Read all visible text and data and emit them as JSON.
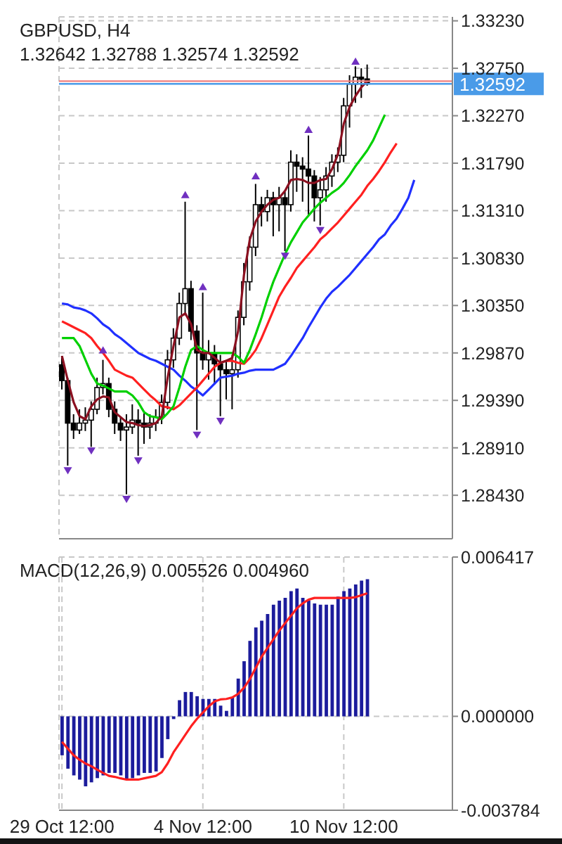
{
  "chart_data": [
    {
      "type": "candlestick",
      "title": "GBPUSD, H4",
      "subtitle": "1.32642 1.32788 1.32574 1.32592",
      "color": "#000000",
      "categories": [
        null,
        null,
        null,
        null,
        null,
        null,
        null,
        null,
        null,
        null,
        null,
        null,
        null,
        null,
        null,
        null,
        null,
        null,
        null,
        null,
        null,
        null,
        null,
        null,
        null,
        null,
        null,
        null,
        null,
        null,
        null,
        null,
        null,
        null,
        null,
        null,
        null,
        null,
        null,
        null,
        null,
        null,
        null,
        null,
        null,
        null,
        null,
        null,
        null,
        null,
        null,
        null,
        null,
        null,
        null,
        null,
        null,
        null,
        null,
        null,
        null,
        null,
        null,
        null,
        null,
        null,
        null
      ],
      "ohlc": [
        [
          1.2975,
          1.2984,
          1.295,
          1.2959
        ],
        [
          1.2959,
          1.2962,
          1.2873,
          1.2916
        ],
        [
          1.2916,
          1.2925,
          1.29,
          1.2909
        ],
        [
          1.2909,
          1.293,
          1.2905,
          1.2916
        ],
        [
          1.2916,
          1.2932,
          1.2908,
          1.2919
        ],
        [
          1.2919,
          1.2938,
          1.2892,
          1.293
        ],
        [
          1.293,
          1.2962,
          1.2925,
          1.2952
        ],
        [
          1.2952,
          1.298,
          1.2945,
          1.2956
        ],
        [
          1.2956,
          1.2962,
          1.2922,
          1.293
        ],
        [
          1.293,
          1.2938,
          1.2905,
          1.2916
        ],
        [
          1.2916,
          1.2922,
          1.2898,
          1.2909
        ],
        [
          1.2909,
          1.2925,
          1.2844,
          1.2912
        ],
        [
          1.2912,
          1.2935,
          1.2905,
          1.2919
        ],
        [
          1.2919,
          1.293,
          1.2883,
          1.2916
        ],
        [
          1.2916,
          1.2926,
          1.2895,
          1.2912
        ],
        [
          1.2912,
          1.2925,
          1.29,
          1.2916
        ],
        [
          1.2916,
          1.293,
          1.2908,
          1.2922
        ],
        [
          1.2922,
          1.2945,
          1.2915,
          1.2937
        ],
        [
          1.2937,
          1.299,
          1.293,
          1.298
        ],
        [
          1.298,
          1.3012,
          1.2972,
          1.3002
        ],
        [
          1.3002,
          1.3048,
          1.2995,
          1.3037
        ],
        [
          1.3037,
          1.314,
          1.3025,
          1.3052
        ],
        [
          1.3052,
          1.306,
          1.3,
          1.3009
        ],
        [
          1.3009,
          1.3015,
          1.2909,
          1.2987
        ],
        [
          1.2987,
          1.3048,
          1.297,
          1.298
        ],
        [
          1.298,
          1.3,
          1.296,
          1.2987
        ],
        [
          1.2987,
          1.2995,
          1.2955,
          1.2976
        ],
        [
          1.2976,
          1.2985,
          1.2923,
          1.297
        ],
        [
          1.297,
          1.298,
          1.294,
          1.2966
        ],
        [
          1.2966,
          1.2985,
          1.293,
          1.297
        ],
        [
          1.297,
          1.303,
          1.2962,
          1.3023
        ],
        [
          1.3023,
          1.3078,
          1.3015,
          1.3059
        ],
        [
          1.3059,
          1.3105,
          1.305,
          1.3094
        ],
        [
          1.3094,
          1.3158,
          1.3085,
          1.3137
        ],
        [
          1.3137,
          1.3145,
          1.3115,
          1.313
        ],
        [
          1.313,
          1.3152,
          1.312,
          1.3144
        ],
        [
          1.3144,
          1.315,
          1.3105,
          1.3137
        ],
        [
          1.3137,
          1.3155,
          1.311,
          1.3144
        ],
        [
          1.3144,
          1.315,
          1.309,
          1.3137
        ],
        [
          1.3137,
          1.3192,
          1.313,
          1.318
        ],
        [
          1.318,
          1.3188,
          1.315,
          1.3176
        ],
        [
          1.3176,
          1.3185,
          1.314,
          1.3173
        ],
        [
          1.3173,
          1.3207,
          1.3125,
          1.3166
        ],
        [
          1.3166,
          1.3172,
          1.312,
          1.3144
        ],
        [
          1.3144,
          1.3165,
          1.3116,
          1.3152
        ],
        [
          1.3152,
          1.3175,
          1.314,
          1.3166
        ],
        [
          1.3166,
          1.3188,
          1.3155,
          1.318
        ],
        [
          1.318,
          1.3195,
          1.317,
          1.3187
        ],
        [
          1.3187,
          1.3245,
          1.318,
          1.3237
        ],
        [
          1.3237,
          1.3268,
          1.3215,
          1.3259
        ],
        [
          1.3259,
          1.3277,
          1.324,
          1.3266
        ],
        [
          1.3266,
          1.3275,
          1.3245,
          1.3264
        ],
        [
          1.32642,
          1.32788,
          1.32574,
          1.32592
        ],
        null,
        null,
        null,
        null,
        null,
        null,
        null,
        null,
        null,
        null,
        null,
        null,
        null,
        null
      ],
      "series": [
        {
          "type": "line",
          "color": "#2030ff",
          "values": [
            1.3037,
            1.3036,
            1.3033,
            1.3032,
            1.303,
            1.3027,
            1.3022,
            1.3016,
            1.3012,
            1.3006,
            1.3002,
            1.2997,
            1.2992,
            1.2987,
            1.2984,
            1.2981,
            1.2979,
            1.2976,
            1.2973,
            1.297,
            1.2964,
            1.2959,
            1.2953,
            1.2949,
            1.2944,
            1.295,
            1.2956,
            1.2962,
            1.2963,
            1.2964,
            1.2966,
            1.2967,
            1.2969,
            1.297,
            1.297,
            1.297,
            1.297,
            1.2973,
            1.2976,
            1.2984,
            1.2993,
            1.3002,
            1.3013,
            1.3023,
            1.3033,
            1.3042,
            1.3049,
            1.3054,
            1.306,
            1.3066,
            1.3073,
            1.308,
            1.3087,
            1.3094,
            1.3102,
            1.3107,
            1.3116,
            1.3123,
            1.3133,
            1.3144,
            1.3162,
            null,
            null,
            null,
            null,
            null,
            null
          ]
        },
        {
          "type": "line",
          "color": "#ff2020",
          "values": [
            1.3019,
            1.3016,
            1.3013,
            1.301,
            1.3007,
            1.3002,
            1.2994,
            1.2987,
            1.2979,
            1.297,
            1.2967,
            1.2964,
            1.2962,
            1.2956,
            1.295,
            1.2944,
            1.2939,
            1.2933,
            1.2932,
            1.293,
            1.2934,
            1.294,
            1.2946,
            1.2952,
            1.2959,
            1.2966,
            1.2973,
            1.2977,
            1.2979,
            1.2979,
            1.2977,
            1.2976,
            1.2982,
            1.299,
            1.3002,
            1.3016,
            1.303,
            1.3044,
            1.3054,
            1.3063,
            1.3073,
            1.308,
            1.3087,
            1.3094,
            1.3102,
            1.3107,
            1.3113,
            1.3119,
            1.3126,
            1.3133,
            1.314,
            1.3147,
            1.3156,
            1.3163,
            1.3171,
            1.318,
            1.319,
            1.3199,
            null,
            null,
            null,
            null,
            null,
            null,
            null,
            null,
            null
          ]
        },
        {
          "type": "line",
          "color": "#00d000",
          "values": [
            1.3002,
            1.3002,
            1.3002,
            1.2994,
            1.298,
            1.2966,
            1.2956,
            1.2954,
            1.2951,
            1.2948,
            1.2948,
            1.2948,
            1.2944,
            1.2937,
            1.2927,
            1.2923,
            1.2922,
            1.292,
            1.2926,
            1.2933,
            1.2952,
            1.2973,
            1.299,
            1.2994,
            1.299,
            1.2987,
            1.2987,
            1.2987,
            1.2987,
            1.2987,
            1.2983,
            1.2977,
            1.299,
            1.3006,
            1.3023,
            1.3042,
            1.3059,
            1.3073,
            1.3087,
            1.3099,
            1.3109,
            1.3119,
            1.3126,
            1.3133,
            1.3139,
            1.3144,
            1.3149,
            1.3153,
            1.3159,
            1.3167,
            1.3176,
            1.3184,
            1.3192,
            1.3202,
            1.3215,
            1.3228,
            null,
            null,
            null,
            null,
            null,
            null,
            null,
            null,
            null,
            null,
            null
          ]
        },
        {
          "type": "line",
          "color": "#8b1020",
          "values": [
            1.2984,
            1.2959,
            1.2937,
            1.2923,
            1.292,
            1.2933,
            1.294,
            1.2943,
            1.2942,
            1.2927,
            1.2922,
            1.2917,
            1.2916,
            1.2914,
            1.2913,
            1.2914,
            1.2916,
            1.2923,
            1.2962,
            1.2994,
            1.3023,
            1.3027,
            1.3016,
            1.299,
            1.2987,
            1.2987,
            1.2982,
            1.2977,
            1.2979,
            1.2982,
            1.3009,
            1.3066,
            1.3102,
            1.312,
            1.313,
            1.3137,
            1.3142,
            1.3144,
            1.3151,
            1.3162,
            1.3163,
            1.3162,
            1.3159,
            1.3159,
            1.3162,
            1.3163,
            1.3173,
            1.3188,
            1.3219,
            1.3236,
            1.3247,
            1.3256,
            1.3262,
            null,
            null,
            null,
            null,
            null,
            null,
            null,
            null,
            null,
            null,
            null,
            null,
            null,
            null
          ]
        },
        {
          "type": "scatter",
          "color": "#7030c0",
          "marker": "triangle",
          "values": [
            null,
            1.2868,
            null,
            null,
            null,
            1.2888,
            null,
            1.299,
            null,
            null,
            null,
            1.2839,
            null,
            1.2878,
            null,
            null,
            null,
            null,
            null,
            null,
            null,
            1.3147,
            null,
            1.2904,
            1.3054,
            null,
            null,
            1.2918,
            null,
            null,
            null,
            null,
            null,
            1.3166,
            null,
            null,
            null,
            null,
            1.3085,
            null,
            null,
            null,
            1.3213,
            null,
            1.3111,
            null,
            null,
            null,
            null,
            null,
            1.3282,
            null,
            null,
            null,
            null,
            null,
            null,
            null,
            null,
            null,
            null,
            null,
            null,
            null,
            null,
            null,
            null
          ]
        }
      ],
      "ylim": [
        1.2799,
        1.3327
      ],
      "yticks": [
        {
          "value": 1.2843,
          "label": "1.28430"
        },
        {
          "value": 1.2891,
          "label": "1.28910"
        },
        {
          "value": 1.2939,
          "label": "1.29390"
        },
        {
          "value": 1.2987,
          "label": "1.29870"
        },
        {
          "value": 1.3035,
          "label": "1.30350"
        },
        {
          "value": 1.3083,
          "label": "1.30830"
        },
        {
          "value": 1.3131,
          "label": "1.31310"
        },
        {
          "value": 1.3179,
          "label": "1.31790"
        },
        {
          "value": 1.3227,
          "label": "1.32270"
        },
        {
          "value": 1.3275,
          "label": "1.32750"
        },
        {
          "value": 1.3323,
          "label": "1.33230"
        }
      ],
      "ref_lines": [
        {
          "axis": "y",
          "value": 1.3262,
          "color": "#f08080"
        },
        {
          "axis": "y",
          "value": 1.32592,
          "label": "1.32592",
          "color": "#4a9be8"
        }
      ],
      "grid": true,
      "tick_labels": "y"
    },
    {
      "type": "bar",
      "title": "MACD(12,26,9) 0.005526 0.004960",
      "categories": [
        "29 Oct 12:00",
        null,
        null,
        null,
        null,
        null,
        null,
        null,
        null,
        null,
        null,
        null,
        null,
        null,
        null,
        null,
        null,
        null,
        null,
        null,
        null,
        null,
        null,
        null,
        "4 Nov 12:00",
        null,
        null,
        null,
        null,
        null,
        null,
        null,
        null,
        null,
        null,
        null,
        null,
        null,
        null,
        null,
        null,
        null,
        null,
        null,
        null,
        null,
        null,
        null,
        "10 Nov 12:00",
        null,
        null,
        null,
        null,
        null,
        null,
        null,
        null,
        null,
        null,
        null,
        null,
        null,
        null,
        null,
        null,
        null,
        null
      ],
      "series": [
        {
          "type": "bar",
          "color": "#1c1c9c",
          "values": [
            -0.00157,
            -0.00211,
            -0.00238,
            -0.00255,
            -0.00282,
            -0.00266,
            -0.00249,
            -0.00238,
            -0.00228,
            -0.00228,
            -0.00238,
            -0.00255,
            -0.00249,
            -0.00238,
            -0.00228,
            -0.00228,
            -0.00222,
            -0.00168,
            -0.00092,
            -0.00011,
            0.00065,
            0.00098,
            0.00098,
            0.00081,
            0.0007,
            0.0007,
            0.0007,
            0.00043,
            0.00022,
            0.00076,
            0.00152,
            0.00222,
            0.00304,
            0.00358,
            0.00385,
            0.00412,
            0.0045,
            0.00466,
            0.00477,
            0.00504,
            0.00515,
            0.00477,
            0.00466,
            0.00455,
            0.0045,
            0.0045,
            0.0045,
            0.00482,
            0.00504,
            0.00515,
            0.00531,
            0.00547,
            0.005526,
            null,
            null,
            null,
            null,
            null,
            null,
            null,
            null,
            null,
            null,
            null,
            null,
            null,
            null
          ]
        },
        {
          "type": "line",
          "color": "#ff2020",
          "values": [
            -0.00103,
            -0.0013,
            -0.00157,
            -0.00175,
            -0.0019,
            -0.00201,
            -0.00215,
            -0.00228,
            -0.0024,
            -0.00244,
            -0.0025,
            -0.00255,
            -0.00255,
            -0.00255,
            -0.0025,
            -0.00245,
            -0.0024,
            -0.00225,
            -0.0019,
            -0.00145,
            -0.0011,
            -0.00075,
            -0.0004,
            -0.0001,
            0.00015,
            0.0004,
            0.0006,
            0.00068,
            0.0007,
            0.00076,
            0.0009,
            0.00115,
            0.0015,
            0.00195,
            0.0024,
            0.00275,
            0.0031,
            0.00345,
            0.00375,
            0.00405,
            0.00435,
            0.00455,
            0.0047,
            0.00477,
            0.00477,
            0.00477,
            0.00477,
            0.00477,
            0.00477,
            0.00477,
            0.0048,
            0.00488,
            0.00496,
            null,
            null,
            null,
            null,
            null,
            null,
            null,
            null,
            null,
            null,
            null,
            null,
            null,
            null
          ]
        }
      ],
      "ylim": [
        -0.003784,
        0.006417
      ],
      "yticks": [
        {
          "value": -0.003784,
          "label": "-0.003784"
        },
        {
          "value": 0,
          "label": "0.000000"
        },
        {
          "value": 0.006417,
          "label": "0.006417"
        }
      ],
      "grid": true
    }
  ]
}
